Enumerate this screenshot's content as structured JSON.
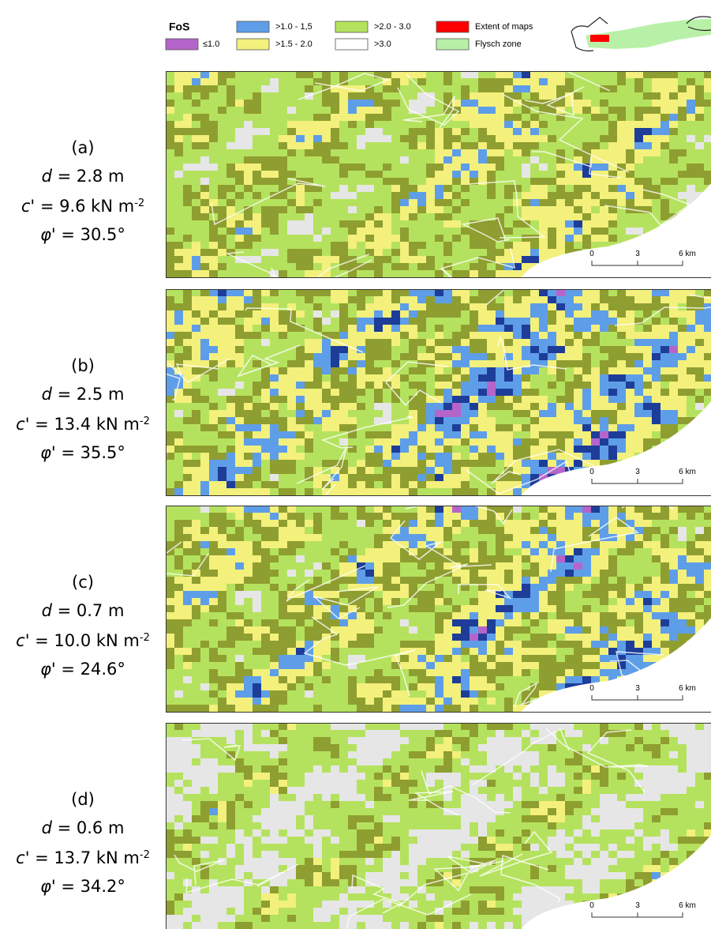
{
  "legend": {
    "title": "FoS",
    "items": [
      {
        "label": "≤1.0",
        "color": "#b565c9"
      },
      {
        "label": ">1.0 - 1,5",
        "color": "#5e9ee8"
      },
      {
        "label": ">1.5 - 2.0",
        "color": "#f3f07c"
      },
      {
        "label": ">2.0 - 3.0",
        "color": "#b5e25e"
      },
      {
        "label": ">3.0",
        "color": "#ffffff"
      },
      {
        "label": "Extent of maps",
        "color": "#ff0000"
      },
      {
        "label": "Flysch zone",
        "color": "#b8f0a8"
      }
    ]
  },
  "panels": [
    {
      "label": "(a)",
      "depth": {
        "symbol": "d",
        "text": " = 2.8 m"
      },
      "cohesion": {
        "symbol": "c'",
        "text": " = 9.6 kN m",
        "sup": "-2"
      },
      "friction": {
        "symbol": "φ'",
        "text": " = 30.5°"
      }
    },
    {
      "label": "(b)",
      "depth": {
        "symbol": "d",
        "text": " = 2.5 m"
      },
      "cohesion": {
        "symbol": "c'",
        "text": " = 13.4 kN m",
        "sup": "-2"
      },
      "friction": {
        "symbol": "φ'",
        "text": " = 35.5°"
      }
    },
    {
      "label": "(c)",
      "depth": {
        "symbol": "d",
        "text": " = 0.7 m"
      },
      "cohesion": {
        "symbol": "c'",
        "text": " = 10.0 kN m",
        "sup": "-2"
      },
      "friction": {
        "symbol": "φ'",
        "text": " = 24.6°"
      }
    },
    {
      "label": "(d)",
      "depth": {
        "symbol": "d",
        "text": " = 0.6 m"
      },
      "cohesion": {
        "symbol": "c'",
        "text": " = 13.7 kN m",
        "sup": "-2"
      },
      "friction": {
        "symbol": "φ'",
        "text": " = 34.2°"
      }
    }
  ],
  "scale_bar": {
    "ticks": [
      "0",
      "3",
      "6 km"
    ]
  }
}
